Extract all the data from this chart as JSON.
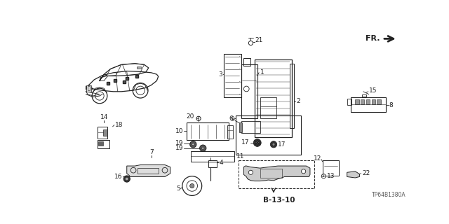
{
  "bg_color": "#ffffff",
  "line_color": "#222222",
  "figsize": [
    6.4,
    3.2
  ],
  "dpi": 100,
  "title_code": "TP64B1380A",
  "fr_label": "FR.",
  "b1310_label": "B-13-10"
}
